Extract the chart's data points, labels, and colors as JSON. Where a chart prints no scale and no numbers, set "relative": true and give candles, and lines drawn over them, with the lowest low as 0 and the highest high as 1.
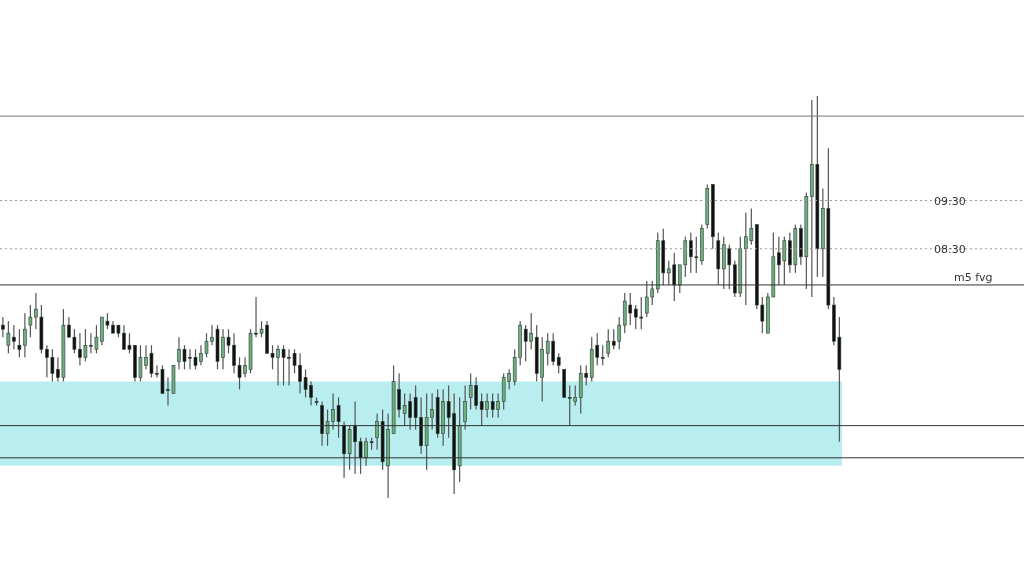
{
  "chart_data": {
    "type": "candlestick",
    "relative": true,
    "grid": false,
    "legend": false,
    "annotations": [
      {
        "text": "09:30",
        "y": 0.74
      },
      {
        "text": "08:30",
        "y": 0.62
      }
    ],
    "categories": [
      null,
      null,
      null,
      null,
      null,
      null,
      null,
      null,
      null,
      null,
      null,
      null,
      null,
      null,
      null,
      null,
      null,
      null,
      null,
      null,
      null,
      null,
      null,
      null,
      null,
      null,
      null,
      null,
      null,
      null,
      null,
      null,
      null,
      null,
      null,
      null,
      null,
      null,
      null,
      null,
      null,
      null,
      null,
      null,
      null,
      null,
      null,
      null,
      null,
      null,
      null,
      null,
      null,
      null,
      null,
      null,
      null,
      null,
      null,
      null,
      null,
      null,
      null,
      null,
      null,
      null,
      null,
      null,
      null,
      null,
      null,
      null,
      null,
      null,
      null,
      null,
      null,
      null,
      null,
      null,
      null,
      null,
      null,
      null,
      null,
      null,
      null,
      null,
      null,
      null,
      null,
      null,
      null,
      null,
      null,
      null,
      null,
      null,
      null,
      null,
      null,
      null,
      null,
      null,
      null,
      null,
      null,
      null,
      null,
      null,
      null,
      null,
      null,
      null,
      null,
      null,
      null,
      null,
      null,
      null,
      null,
      null,
      null,
      null,
      null,
      null,
      null,
      null,
      null,
      null,
      null,
      null,
      null,
      null,
      null,
      null,
      null,
      null,
      null,
      null,
      null,
      null,
      null,
      null,
      null,
      null,
      null,
      null,
      null,
      null,
      null,
      null,
      null
    ],
    "ohlc": [
      [
        0.43,
        0.45,
        0.4,
        0.42
      ],
      [
        0.38,
        0.44,
        0.36,
        0.41
      ],
      [
        0.4,
        0.43,
        0.37,
        0.39
      ],
      [
        0.38,
        0.42,
        0.35,
        0.37
      ],
      [
        0.38,
        0.46,
        0.35,
        0.42
      ],
      [
        0.43,
        0.48,
        0.4,
        0.45
      ],
      [
        0.45,
        0.51,
        0.42,
        0.47
      ],
      [
        0.45,
        0.48,
        0.36,
        0.37
      ],
      [
        0.37,
        0.38,
        0.3,
        0.35
      ],
      [
        0.35,
        0.37,
        0.29,
        0.31
      ],
      [
        0.32,
        0.35,
        0.29,
        0.3
      ],
      [
        0.3,
        0.47,
        0.29,
        0.43
      ],
      [
        0.43,
        0.45,
        0.4,
        0.4
      ],
      [
        0.4,
        0.42,
        0.36,
        0.37
      ],
      [
        0.37,
        0.41,
        0.33,
        0.35
      ],
      [
        0.35,
        0.42,
        0.34,
        0.38
      ],
      [
        0.38,
        0.41,
        0.36,
        0.38
      ],
      [
        0.37,
        0.43,
        0.36,
        0.4
      ],
      [
        0.39,
        0.45,
        0.38,
        0.45
      ],
      [
        0.44,
        0.46,
        0.42,
        0.43
      ],
      [
        0.43,
        0.44,
        0.41,
        0.41
      ],
      [
        0.43,
        0.43,
        0.4,
        0.41
      ],
      [
        0.41,
        0.43,
        0.37,
        0.37
      ],
      [
        0.38,
        0.41,
        0.36,
        0.37
      ],
      [
        0.38,
        0.38,
        0.29,
        0.3
      ],
      [
        0.3,
        0.38,
        0.29,
        0.35
      ],
      [
        0.33,
        0.38,
        0.32,
        0.35
      ],
      [
        0.36,
        0.38,
        0.3,
        0.31
      ],
      [
        0.31,
        0.33,
        0.3,
        0.31
      ],
      [
        0.32,
        0.33,
        0.26,
        0.26
      ],
      [
        0.27,
        0.3,
        0.23,
        0.27
      ],
      [
        0.26,
        0.33,
        0.26,
        0.33
      ],
      [
        0.34,
        0.4,
        0.32,
        0.37
      ],
      [
        0.37,
        0.38,
        0.32,
        0.34
      ],
      [
        0.35,
        0.37,
        0.32,
        0.35
      ],
      [
        0.35,
        0.37,
        0.32,
        0.33
      ],
      [
        0.34,
        0.38,
        0.33,
        0.36
      ],
      [
        0.36,
        0.41,
        0.35,
        0.39
      ],
      [
        0.39,
        0.43,
        0.38,
        0.4
      ],
      [
        0.42,
        0.43,
        0.32,
        0.34
      ],
      [
        0.35,
        0.42,
        0.32,
        0.4
      ],
      [
        0.4,
        0.42,
        0.36,
        0.38
      ],
      [
        0.38,
        0.41,
        0.31,
        0.33
      ],
      [
        0.33,
        0.35,
        0.27,
        0.3
      ],
      [
        0.31,
        0.35,
        0.3,
        0.33
      ],
      [
        0.32,
        0.42,
        0.31,
        0.41
      ],
      [
        0.41,
        0.5,
        0.4,
        0.41
      ],
      [
        0.41,
        0.44,
        0.4,
        0.42
      ],
      [
        0.43,
        0.44,
        0.36,
        0.36
      ],
      [
        0.36,
        0.38,
        0.32,
        0.35
      ],
      [
        0.35,
        0.38,
        0.28,
        0.37
      ],
      [
        0.37,
        0.38,
        0.28,
        0.35
      ],
      [
        0.35,
        0.37,
        0.28,
        0.35
      ],
      [
        0.36,
        0.37,
        0.31,
        0.33
      ],
      [
        0.33,
        0.36,
        0.26,
        0.29
      ],
      [
        0.3,
        0.32,
        0.25,
        0.27
      ],
      [
        0.28,
        0.29,
        0.23,
        0.25
      ],
      [
        0.24,
        0.25,
        0.23,
        0.24
      ],
      [
        0.23,
        0.24,
        0.13,
        0.16
      ],
      [
        0.16,
        0.22,
        0.13,
        0.19
      ],
      [
        0.19,
        0.26,
        0.17,
        0.22
      ],
      [
        0.23,
        0.25,
        0.15,
        0.19
      ],
      [
        0.18,
        0.19,
        0.05,
        0.11
      ],
      [
        0.11,
        0.18,
        0.07,
        0.17
      ],
      [
        0.18,
        0.24,
        0.06,
        0.14
      ],
      [
        0.14,
        0.15,
        0.06,
        0.1
      ],
      [
        0.1,
        0.15,
        0.08,
        0.14
      ],
      [
        0.14,
        0.15,
        0.12,
        0.14
      ],
      [
        0.15,
        0.21,
        0.12,
        0.19
      ],
      [
        0.19,
        0.22,
        0.07,
        0.09
      ],
      [
        0.08,
        0.21,
        0,
        0.17
      ],
      [
        0.16,
        0.33,
        0.16,
        0.29
      ],
      [
        0.27,
        0.31,
        0.2,
        0.22
      ],
      [
        0.21,
        0.26,
        0.18,
        0.23
      ],
      [
        0.24,
        0.26,
        0.17,
        0.2
      ],
      [
        0.25,
        0.28,
        0.17,
        0.2
      ],
      [
        0.2,
        0.25,
        0.11,
        0.13
      ],
      [
        0.13,
        0.26,
        0.07,
        0.2
      ],
      [
        0.2,
        0.26,
        0.17,
        0.22
      ],
      [
        0.25,
        0.27,
        0.15,
        0.16
      ],
      [
        0.16,
        0.27,
        0.13,
        0.24
      ],
      [
        0.24,
        0.28,
        0.15,
        0.2
      ],
      [
        0.21,
        0.26,
        0.01,
        0.07
      ],
      [
        0.08,
        0.25,
        0.04,
        0.18
      ],
      [
        0.19,
        0.28,
        0.17,
        0.24
      ],
      [
        0.25,
        0.31,
        0.22,
        0.28
      ],
      [
        0.28,
        0.3,
        0.22,
        0.23
      ],
      [
        0.24,
        0.26,
        0.18,
        0.22
      ],
      [
        0.22,
        0.26,
        0.2,
        0.24
      ],
      [
        0.24,
        0.26,
        0.2,
        0.22
      ],
      [
        0.22,
        0.26,
        0.2,
        0.24
      ],
      [
        0.24,
        0.31,
        0.22,
        0.3
      ],
      [
        0.29,
        0.32,
        0.27,
        0.31
      ],
      [
        0.29,
        0.37,
        0.28,
        0.35
      ],
      [
        0.35,
        0.44,
        0.33,
        0.43
      ],
      [
        0.42,
        0.43,
        0.34,
        0.39
      ],
      [
        0.39,
        0.46,
        0.37,
        0.41
      ],
      [
        0.4,
        0.43,
        0.29,
        0.31
      ],
      [
        0.3,
        0.4,
        0.24,
        0.37
      ],
      [
        0.36,
        0.41,
        0.33,
        0.39
      ],
      [
        0.39,
        0.41,
        0.33,
        0.34
      ],
      [
        0.35,
        0.36,
        0.31,
        0.33
      ],
      [
        0.32,
        0.32,
        0.25,
        0.25
      ],
      [
        0.25,
        0.28,
        0.18,
        0.25
      ],
      [
        0.24,
        0.28,
        0.23,
        0.25
      ],
      [
        0.25,
        0.33,
        0.21,
        0.31
      ],
      [
        0.31,
        0.33,
        0.28,
        0.3
      ],
      [
        0.3,
        0.4,
        0.29,
        0.37
      ],
      [
        0.38,
        0.41,
        0.33,
        0.35
      ],
      [
        0.35,
        0.38,
        0.33,
        0.35
      ],
      [
        0.36,
        0.42,
        0.35,
        0.39
      ],
      [
        0.39,
        0.42,
        0.37,
        0.38
      ],
      [
        0.39,
        0.45,
        0.37,
        0.43
      ],
      [
        0.43,
        0.51,
        0.41,
        0.49
      ],
      [
        0.48,
        0.51,
        0.43,
        0.46
      ],
      [
        0.47,
        0.48,
        0.42,
        0.45
      ],
      [
        0.45,
        0.5,
        0.42,
        0.45
      ],
      [
        0.46,
        0.54,
        0.45,
        0.5
      ],
      [
        0.5,
        0.54,
        0.48,
        0.52
      ],
      [
        0.52,
        0.66,
        0.51,
        0.64
      ],
      [
        0.64,
        0.67,
        0.53,
        0.56
      ],
      [
        0.56,
        0.59,
        0.53,
        0.57
      ],
      [
        0.58,
        0.61,
        0.49,
        0.53
      ],
      [
        0.53,
        0.58,
        0.51,
        0.58
      ],
      [
        0.58,
        0.65,
        0.55,
        0.64
      ],
      [
        0.64,
        0.66,
        0.56,
        0.6
      ],
      [
        0.6,
        0.65,
        0.56,
        0.6
      ],
      [
        0.59,
        0.68,
        0.58,
        0.67
      ],
      [
        0.68,
        0.78,
        0.67,
        0.77
      ],
      [
        0.78,
        0.78,
        0.62,
        0.65
      ],
      [
        0.64,
        0.66,
        0.53,
        0.57
      ],
      [
        0.57,
        0.65,
        0.52,
        0.63
      ],
      [
        0.62,
        0.63,
        0.52,
        0.58
      ],
      [
        0.58,
        0.59,
        0.5,
        0.51
      ],
      [
        0.51,
        0.65,
        0.5,
        0.62
      ],
      [
        0.62,
        0.71,
        0.48,
        0.65
      ],
      [
        0.64,
        0.72,
        0.63,
        0.67
      ],
      [
        0.68,
        0.68,
        0.47,
        0.48
      ],
      [
        0.48,
        0.5,
        0.41,
        0.44
      ],
      [
        0.41,
        0.51,
        0.41,
        0.5
      ],
      [
        0.5,
        0.66,
        0.5,
        0.6
      ],
      [
        0.61,
        0.65,
        0.53,
        0.58
      ],
      [
        0.59,
        0.65,
        0.53,
        0.64
      ],
      [
        0.64,
        0.66,
        0.56,
        0.58
      ],
      [
        0.58,
        0.68,
        0.56,
        0.67
      ],
      [
        0.67,
        0.68,
        0.58,
        0.6
      ],
      [
        0.6,
        0.76,
        0.52,
        0.75
      ],
      [
        0.75,
        0.99,
        0.5,
        0.83
      ],
      [
        0.83,
        1,
        0.55,
        0.62
      ],
      [
        0.62,
        0.77,
        0.55,
        0.72
      ],
      [
        0.72,
        0.87,
        0.47,
        0.48
      ],
      [
        0.48,
        0.5,
        0.38,
        0.39
      ],
      [
        0.4,
        0.45,
        0.14,
        0.32
      ]
    ],
    "colors": [
      "#111111",
      "#6fae7e",
      "#111111",
      "#111111",
      "#6fae7e",
      "#6fae7e",
      "#6fae7e",
      "#111111",
      "#111111",
      "#111111",
      "#111111",
      "#6fae7e",
      "#111111",
      "#111111",
      "#111111",
      "#6fae7e",
      "#111111",
      "#6fae7e",
      "#6fae7e",
      "#111111",
      "#111111",
      "#111111",
      "#111111",
      "#111111",
      "#111111",
      "#6fae7e",
      "#6fae7e",
      "#111111",
      "#111111",
      "#111111",
      "#111111",
      "#6fae7e",
      "#6fae7e",
      "#111111",
      "#111111",
      "#111111",
      "#6fae7e",
      "#6fae7e",
      "#6fae7e",
      "#111111",
      "#6fae7e",
      "#111111",
      "#111111",
      "#111111",
      "#6fae7e",
      "#6fae7e",
      "#111111",
      "#6fae7e",
      "#111111",
      "#111111",
      "#6fae7e",
      "#111111",
      "#111111",
      "#111111",
      "#111111",
      "#111111",
      "#111111",
      "#111111",
      "#111111",
      "#6fae7e",
      "#6fae7e",
      "#111111",
      "#111111",
      "#6fae7e",
      "#111111",
      "#111111",
      "#6fae7e",
      "#111111",
      "#6fae7e",
      "#111111",
      "#6fae7e",
      "#6fae7e",
      "#111111",
      "#6fae7e",
      "#111111",
      "#111111",
      "#111111",
      "#6fae7e",
      "#6fae7e",
      "#111111",
      "#6fae7e",
      "#111111",
      "#111111",
      "#6fae7e",
      "#6fae7e",
      "#6fae7e",
      "#111111",
      "#111111",
      "#6fae7e",
      "#111111",
      "#6fae7e",
      "#6fae7e",
      "#6fae7e",
      "#6fae7e",
      "#6fae7e",
      "#111111",
      "#6fae7e",
      "#111111",
      "#6fae7e",
      "#6fae7e",
      "#111111",
      "#111111",
      "#111111",
      "#111111",
      "#6fae7e",
      "#6fae7e",
      "#111111",
      "#6fae7e",
      "#111111",
      "#111111",
      "#6fae7e",
      "#111111",
      "#6fae7e",
      "#6fae7e",
      "#111111",
      "#111111",
      "#111111",
      "#6fae7e",
      "#6fae7e",
      "#6fae7e",
      "#111111",
      "#6fae7e",
      "#111111",
      "#6fae7e",
      "#6fae7e",
      "#111111",
      "#111111",
      "#6fae7e",
      "#6fae7e",
      "#111111",
      "#111111",
      "#6fae7e",
      "#111111",
      "#111111",
      "#6fae7e",
      "#6fae7e",
      "#6fae7e",
      "#111111",
      "#111111",
      "#6fae7e",
      "#6fae7e",
      "#111111",
      "#6fae7e",
      "#111111",
      "#6fae7e",
      "#111111",
      "#6fae7e",
      "#6fae7e",
      "#111111",
      "#6fae7e",
      "#111111",
      "#111111",
      "#111111"
    ],
    "ref_lines": [
      {
        "axis": "y",
        "value": 0.95,
        "color": "#777777",
        "line_style": "solid"
      },
      {
        "axis": "y",
        "value": 0.74,
        "color": "#999999",
        "line_style": "dotted"
      },
      {
        "axis": "y",
        "value": 0.62,
        "color": "#999999",
        "line_style": "dotted"
      },
      {
        "axis": "y",
        "value": 0.53,
        "label": "m5 fvg",
        "color": "#333333",
        "line_style": "solid"
      },
      {
        "axis": "y",
        "value": 0.18,
        "color": "#333333",
        "line_style": "solid"
      },
      {
        "axis": "y",
        "value": 0.1,
        "color": "#333333",
        "line_style": "solid"
      }
    ],
    "bands": [
      {
        "axis": "y",
        "from": 0.08,
        "to": 0.29,
        "color": "#b9eef0"
      }
    ]
  }
}
